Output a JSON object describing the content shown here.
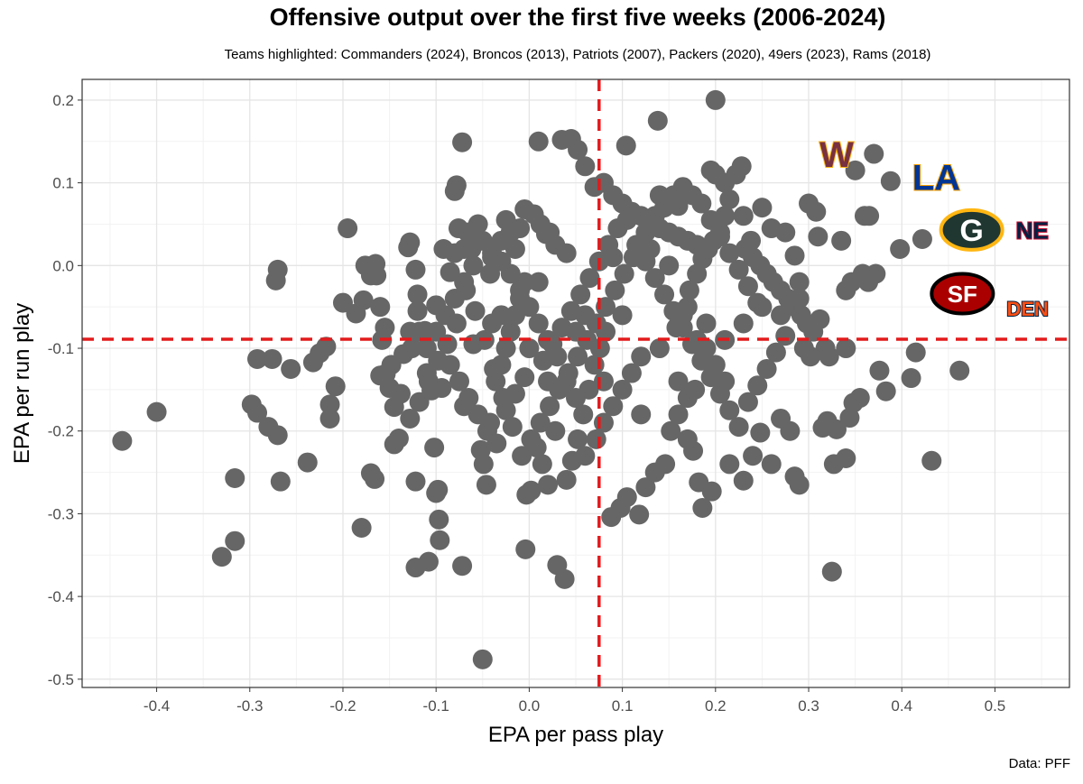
{
  "title": "Offensive output over the first five weeks (2006-2024)",
  "subtitle": "Teams highlighted: Commanders (2024), Broncos (2013), Patriots (2007), Packers (2020), 49ers (2023), Rams (2018)",
  "caption": "Data: PFF",
  "colors": {
    "points": "#666666",
    "reference_lines": "#e31a1c",
    "grid_major": "#e5e5e5",
    "grid_minor": "#f2f2f2",
    "panel_border": "#333333"
  },
  "chart_data": {
    "type": "scatter",
    "title": "Offensive output over the first five weeks (2006-2024)",
    "xlabel": "EPA per pass play",
    "ylabel": "EPA per run play",
    "xlim": [
      -0.48,
      0.58
    ],
    "ylim": [
      -0.51,
      0.225
    ],
    "xticks": [
      -0.4,
      -0.3,
      -0.2,
      -0.1,
      0.0,
      0.1,
      0.2,
      0.3,
      0.4,
      0.5
    ],
    "xtick_labels": [
      "-0.4",
      "-0.3",
      "-0.2",
      "-0.1",
      "0.0",
      "0.1",
      "0.2",
      "0.3",
      "0.4",
      "0.5"
    ],
    "yticks": [
      0.2,
      0.1,
      0.0,
      -0.1,
      -0.2,
      -0.3,
      -0.4,
      -0.5
    ],
    "ytick_labels": [
      "0.2",
      "0.1",
      "0.0",
      "-0.1",
      "-0.2",
      "-0.3",
      "-0.4",
      "-0.5"
    ],
    "grid": true,
    "reference_lines": {
      "vertical_x": 0.075,
      "horizontal_y": -0.089
    },
    "highlighted_teams": [
      {
        "team": "Commanders (2024)",
        "logo": "W",
        "x": 0.33,
        "y": 0.135
      },
      {
        "team": "Rams (2018)",
        "logo": "LA",
        "x": 0.437,
        "y": 0.107
      },
      {
        "team": "Packers (2020)",
        "logo": "G",
        "x": 0.475,
        "y": 0.043
      },
      {
        "team": "Patriots (2007)",
        "logo": "NE",
        "x": 0.54,
        "y": 0.043
      },
      {
        "team": "49ers (2023)",
        "logo": "SF",
        "x": 0.465,
        "y": -0.034
      },
      {
        "team": "Broncos (2013)",
        "logo": "DEN",
        "x": 0.535,
        "y": -0.052
      }
    ],
    "points": [
      [
        -0.437,
        -0.212
      ],
      [
        -0.4,
        -0.177
      ],
      [
        -0.33,
        -0.352
      ],
      [
        -0.316,
        -0.333
      ],
      [
        -0.316,
        -0.257
      ],
      [
        -0.298,
        -0.168
      ],
      [
        -0.292,
        -0.178
      ],
      [
        -0.292,
        -0.113
      ],
      [
        -0.28,
        -0.195
      ],
      [
        -0.276,
        -0.113
      ],
      [
        -0.27,
        -0.205
      ],
      [
        -0.267,
        -0.261
      ],
      [
        -0.27,
        -0.005
      ],
      [
        -0.272,
        -0.018
      ],
      [
        -0.256,
        -0.125
      ],
      [
        -0.238,
        -0.238
      ],
      [
        -0.232,
        -0.117
      ],
      [
        -0.225,
        -0.106
      ],
      [
        -0.218,
        -0.098
      ],
      [
        -0.214,
        -0.185
      ],
      [
        -0.214,
        -0.168
      ],
      [
        -0.208,
        -0.146
      ],
      [
        -0.2,
        -0.045
      ],
      [
        -0.195,
        0.045
      ],
      [
        -0.186,
        -0.058
      ],
      [
        -0.176,
        0.0
      ],
      [
        -0.178,
        -0.042
      ],
      [
        -0.17,
        -0.012
      ],
      [
        -0.16,
        -0.05
      ],
      [
        -0.155,
        -0.075
      ],
      [
        -0.164,
        -0.012
      ],
      [
        -0.165,
        0.002
      ],
      [
        -0.18,
        -0.317
      ],
      [
        -0.17,
        -0.251
      ],
      [
        -0.166,
        -0.258
      ],
      [
        -0.16,
        -0.133
      ],
      [
        -0.154,
        -0.131
      ],
      [
        -0.15,
        -0.148
      ],
      [
        -0.145,
        -0.171
      ],
      [
        -0.145,
        -0.216
      ],
      [
        -0.14,
        -0.209
      ],
      [
        -0.135,
        -0.107
      ],
      [
        -0.126,
        -0.1
      ],
      [
        -0.128,
        -0.08
      ],
      [
        -0.13,
        0.022
      ],
      [
        -0.128,
        0.028
      ],
      [
        -0.122,
        -0.005
      ],
      [
        -0.12,
        -0.035
      ],
      [
        -0.122,
        -0.261
      ],
      [
        -0.122,
        -0.365
      ],
      [
        -0.108,
        -0.358
      ],
      [
        -0.112,
        -0.079
      ],
      [
        -0.118,
        -0.08
      ],
      [
        -0.11,
        -0.13
      ],
      [
        -0.105,
        -0.151
      ],
      [
        -0.102,
        -0.22
      ],
      [
        -0.1,
        -0.275
      ],
      [
        -0.098,
        -0.271
      ],
      [
        -0.097,
        -0.307
      ],
      [
        -0.096,
        -0.332
      ],
      [
        -0.094,
        -0.148
      ],
      [
        -0.1,
        -0.048
      ],
      [
        -0.092,
        0.02
      ],
      [
        -0.085,
        -0.008
      ],
      [
        -0.08,
        0.015
      ],
      [
        -0.076,
        0.045
      ],
      [
        -0.072,
        0.149
      ],
      [
        -0.08,
        0.09
      ],
      [
        -0.078,
        0.097
      ],
      [
        -0.066,
        0.04
      ],
      [
        -0.07,
        0.02
      ],
      [
        -0.062,
        0.02
      ],
      [
        -0.055,
        0.05
      ],
      [
        -0.05,
        0.03
      ],
      [
        -0.04,
        0.015
      ],
      [
        -0.042,
        -0.01
      ],
      [
        -0.03,
        0.03
      ],
      [
        -0.025,
        0.055
      ],
      [
        -0.02,
        0.04
      ],
      [
        -0.015,
        0.02
      ],
      [
        -0.01,
        0.045
      ],
      [
        -0.005,
        0.068
      ],
      [
        0.005,
        0.062
      ],
      [
        0.012,
        0.05
      ],
      [
        0.018,
        0.038
      ],
      [
        0.022,
        0.04
      ],
      [
        0.028,
        0.025
      ],
      [
        0.04,
        0.015
      ],
      [
        -0.072,
        -0.363
      ],
      [
        -0.05,
        -0.476
      ],
      [
        -0.046,
        -0.265
      ],
      [
        -0.052,
        -0.223
      ],
      [
        -0.049,
        -0.24
      ],
      [
        -0.042,
        -0.19
      ],
      [
        -0.036,
        -0.14
      ],
      [
        -0.03,
        -0.12
      ],
      [
        -0.025,
        -0.1
      ],
      [
        -0.02,
        -0.08
      ],
      [
        -0.015,
        -0.06
      ],
      [
        -0.01,
        -0.04
      ],
      [
        -0.005,
        -0.02
      ],
      [
        -0.003,
        -0.277
      ],
      [
        0.002,
        -0.272
      ],
      [
        -0.004,
        -0.343
      ],
      [
        0.008,
        -0.22
      ],
      [
        0.014,
        -0.24
      ],
      [
        0.02,
        -0.265
      ],
      [
        0.028,
        -0.2
      ],
      [
        0.03,
        -0.362
      ],
      [
        0.038,
        -0.379
      ],
      [
        0.04,
        -0.259
      ],
      [
        0.046,
        -0.236
      ],
      [
        0.052,
        -0.21
      ],
      [
        0.058,
        -0.18
      ],
      [
        0.064,
        -0.15
      ],
      [
        0.07,
        -0.12
      ],
      [
        0.076,
        -0.1
      ],
      [
        0.082,
        -0.08
      ],
      [
        0.088,
        -0.304
      ],
      [
        0.098,
        -0.293
      ],
      [
        0.105,
        -0.28
      ],
      [
        0.118,
        -0.301
      ],
      [
        0.125,
        -0.268
      ],
      [
        0.135,
        -0.25
      ],
      [
        0.146,
        -0.24
      ],
      [
        0.152,
        -0.2
      ],
      [
        0.16,
        -0.18
      ],
      [
        0.17,
        -0.16
      ],
      [
        0.178,
        -0.15
      ],
      [
        0.186,
        -0.293
      ],
      [
        0.196,
        -0.273
      ],
      [
        0.182,
        -0.262
      ],
      [
        0.176,
        -0.224
      ],
      [
        0.17,
        -0.21
      ],
      [
        0.158,
        -0.075
      ],
      [
        0.165,
        -0.06
      ],
      [
        0.172,
        -0.03
      ],
      [
        0.18,
        -0.01
      ],
      [
        0.186,
        0.008
      ],
      [
        0.192,
        0.02
      ],
      [
        0.198,
        0.03
      ],
      [
        0.205,
        0.04
      ],
      [
        0.21,
        0.06
      ],
      [
        0.215,
        0.08
      ],
      [
        0.222,
        0.11
      ],
      [
        0.228,
        0.12
      ],
      [
        0.2,
        0.2
      ],
      [
        0.138,
        0.175
      ],
      [
        0.104,
        0.145
      ],
      [
        0.035,
        0.152
      ],
      [
        0.045,
        0.153
      ],
      [
        0.052,
        0.14
      ],
      [
        0.01,
        0.15
      ],
      [
        0.06,
        0.12
      ],
      [
        0.08,
        0.1
      ],
      [
        0.07,
        0.095
      ],
      [
        0.09,
        0.085
      ],
      [
        0.1,
        0.075
      ],
      [
        0.11,
        0.065
      ],
      [
        0.12,
        0.06
      ],
      [
        0.13,
        0.05
      ],
      [
        0.14,
        0.045
      ],
      [
        0.15,
        0.04
      ],
      [
        0.16,
        0.035
      ],
      [
        0.17,
        0.03
      ],
      [
        0.18,
        0.025
      ],
      [
        0.19,
        0.02
      ],
      [
        0.232,
        0.02
      ],
      [
        0.24,
        0.01
      ],
      [
        0.248,
        0.0
      ],
      [
        0.255,
        -0.01
      ],
      [
        0.262,
        -0.02
      ],
      [
        0.27,
        -0.03
      ],
      [
        0.278,
        -0.04
      ],
      [
        0.285,
        -0.05
      ],
      [
        0.292,
        -0.06
      ],
      [
        0.298,
        -0.07
      ],
      [
        0.305,
        -0.08
      ],
      [
        0.312,
        -0.065
      ],
      [
        0.318,
        -0.1
      ],
      [
        0.32,
        -0.188
      ],
      [
        0.315,
        -0.196
      ],
      [
        0.325,
        -0.37
      ],
      [
        0.34,
        -0.233
      ],
      [
        0.344,
        -0.184
      ],
      [
        0.348,
        -0.166
      ],
      [
        0.355,
        -0.16
      ],
      [
        0.36,
        0.06
      ],
      [
        0.365,
        0.06
      ],
      [
        0.37,
        0.135
      ],
      [
        0.35,
        0.115
      ],
      [
        0.388,
        0.102
      ],
      [
        0.398,
        0.02
      ],
      [
        0.383,
        -0.152
      ],
      [
        0.376,
        -0.127
      ],
      [
        0.415,
        -0.105
      ],
      [
        0.41,
        -0.136
      ],
      [
        0.432,
        -0.236
      ],
      [
        0.462,
        -0.127
      ],
      [
        0.422,
        0.032
      ],
      [
        0.3,
        0.075
      ],
      [
        0.308,
        0.065
      ],
      [
        0.31,
        0.035
      ],
      [
        0.285,
        0.012
      ],
      [
        0.29,
        -0.02
      ],
      [
        0.28,
        -0.2
      ],
      [
        0.285,
        -0.255
      ],
      [
        0.29,
        -0.265
      ],
      [
        0.27,
        -0.185
      ],
      [
        0.26,
        -0.24
      ],
      [
        0.248,
        -0.202
      ],
      [
        0.24,
        -0.23
      ],
      [
        0.23,
        -0.26
      ],
      [
        0.215,
        -0.24
      ],
      [
        0.21,
        -0.14
      ],
      [
        0.2,
        -0.12
      ],
      [
        0.19,
        -0.1
      ],
      [
        0.18,
        -0.09
      ],
      [
        0.12,
        -0.11
      ],
      [
        0.11,
        -0.13
      ],
      [
        0.1,
        -0.15
      ],
      [
        0.09,
        -0.17
      ],
      [
        0.08,
        -0.19
      ],
      [
        0.072,
        -0.21
      ],
      [
        0.06,
        -0.23
      ],
      [
        0.05,
        -0.16
      ],
      [
        0.04,
        -0.14
      ],
      [
        0.03,
        -0.11
      ],
      [
        0.02,
        -0.09
      ],
      [
        0.01,
        -0.07
      ],
      [
        0.0,
        -0.05
      ],
      [
        -0.01,
        -0.03
      ],
      [
        -0.02,
        -0.01
      ],
      [
        -0.03,
        0.005
      ],
      [
        -0.04,
        0.01
      ],
      [
        -0.06,
        0.0
      ],
      [
        -0.07,
        -0.02
      ],
      [
        -0.08,
        -0.04
      ],
      [
        -0.09,
        -0.06
      ],
      [
        -0.1,
        -0.08
      ],
      [
        -0.11,
        -0.1
      ],
      [
        -0.085,
        -0.12
      ],
      [
        -0.075,
        -0.14
      ],
      [
        -0.065,
        -0.16
      ],
      [
        -0.055,
        -0.18
      ],
      [
        -0.045,
        -0.2
      ],
      [
        -0.035,
        -0.215
      ],
      [
        -0.025,
        -0.175
      ],
      [
        -0.015,
        -0.155
      ],
      [
        -0.005,
        -0.135
      ],
      [
        0.015,
        -0.115
      ],
      [
        0.025,
        -0.095
      ],
      [
        0.035,
        -0.075
      ],
      [
        0.045,
        -0.055
      ],
      [
        0.055,
        -0.035
      ],
      [
        0.065,
        -0.015
      ],
      [
        0.075,
        0.005
      ],
      [
        0.085,
        0.025
      ],
      [
        0.095,
        0.045
      ],
      [
        0.105,
        0.055
      ],
      [
        0.115,
        0.025
      ],
      [
        0.125,
        0.005
      ],
      [
        0.135,
        -0.015
      ],
      [
        0.145,
        -0.035
      ],
      [
        0.155,
        -0.055
      ],
      [
        0.165,
        -0.075
      ],
      [
        0.175,
        -0.095
      ],
      [
        0.185,
        -0.115
      ],
      [
        0.195,
        -0.135
      ],
      [
        0.205,
        -0.155
      ],
      [
        0.215,
        -0.175
      ],
      [
        0.225,
        -0.195
      ],
      [
        0.235,
        -0.165
      ],
      [
        0.245,
        -0.145
      ],
      [
        0.255,
        -0.125
      ],
      [
        0.265,
        -0.105
      ],
      [
        0.275,
        -0.085
      ],
      [
        0.245,
        -0.045
      ],
      [
        0.235,
        -0.025
      ],
      [
        0.225,
        -0.005
      ],
      [
        0.215,
        0.015
      ],
      [
        0.205,
        0.035
      ],
      [
        0.195,
        0.055
      ],
      [
        0.185,
        0.075
      ],
      [
        0.175,
        0.085
      ],
      [
        0.165,
        0.095
      ],
      [
        0.155,
        0.085
      ],
      [
        0.145,
        0.07
      ],
      [
        0.135,
        0.06
      ],
      [
        0.125,
        0.04
      ],
      [
        0.112,
        0.01
      ],
      [
        0.102,
        -0.01
      ],
      [
        0.092,
        -0.03
      ],
      [
        0.082,
        -0.05
      ],
      [
        0.072,
        -0.07
      ],
      [
        0.062,
        -0.09
      ],
      [
        0.052,
        -0.11
      ],
      [
        0.042,
        -0.13
      ],
      [
        0.032,
        -0.15
      ],
      [
        0.022,
        -0.17
      ],
      [
        0.012,
        -0.19
      ],
      [
        0.002,
        -0.21
      ],
      [
        -0.008,
        -0.23
      ],
      [
        -0.018,
        -0.195
      ],
      [
        -0.028,
        -0.16
      ],
      [
        -0.038,
        -0.125
      ],
      [
        -0.048,
        -0.09
      ],
      [
        -0.058,
        -0.055
      ],
      [
        -0.068,
        -0.03
      ],
      [
        -0.078,
        -0.07
      ],
      [
        -0.088,
        -0.095
      ],
      [
        -0.098,
        -0.115
      ],
      [
        -0.108,
        -0.14
      ],
      [
        -0.118,
        -0.165
      ],
      [
        -0.128,
        -0.185
      ],
      [
        -0.138,
        -0.155
      ],
      [
        -0.148,
        -0.12
      ],
      [
        -0.158,
        -0.09
      ],
      [
        -0.12,
        -0.055
      ],
      [
        -0.06,
        -0.095
      ],
      [
        -0.04,
        -0.07
      ],
      [
        0.0,
        -0.1
      ],
      [
        0.02,
        -0.14
      ],
      [
        0.06,
        -0.06
      ],
      [
        0.1,
        -0.06
      ],
      [
        0.14,
        -0.1
      ],
      [
        0.16,
        -0.14
      ],
      [
        0.12,
        -0.18
      ],
      [
        0.08,
        -0.14
      ],
      [
        0.05,
        -0.08
      ],
      [
        -0.03,
        -0.06
      ],
      [
        -0.07,
        -0.17
      ],
      [
        0.01,
        -0.02
      ],
      [
        0.09,
        0.01
      ],
      [
        0.13,
        0.02
      ],
      [
        0.15,
        0.0
      ],
      [
        0.17,
        -0.05
      ],
      [
        0.19,
        -0.07
      ],
      [
        0.21,
        -0.09
      ],
      [
        0.23,
        -0.07
      ],
      [
        0.25,
        -0.05
      ],
      [
        0.27,
        -0.06
      ],
      [
        0.29,
        -0.04
      ],
      [
        0.23,
        0.06
      ],
      [
        0.25,
        0.07
      ],
      [
        0.26,
        0.045
      ],
      [
        0.275,
        0.04
      ],
      [
        0.238,
        0.03
      ],
      [
        0.2,
        0.11
      ],
      [
        0.21,
        0.1
      ],
      [
        0.195,
        0.115
      ],
      [
        0.16,
        0.072
      ],
      [
        0.14,
        0.085
      ],
      [
        0.335,
        0.03
      ],
      [
        0.34,
        -0.03
      ],
      [
        0.346,
        -0.02
      ],
      [
        0.358,
        -0.01
      ],
      [
        0.364,
        -0.02
      ],
      [
        0.372,
        -0.01
      ],
      [
        0.34,
        -0.1
      ],
      [
        0.327,
        -0.24
      ],
      [
        0.33,
        -0.198
      ],
      [
        0.322,
        -0.11
      ],
      [
        0.302,
        -0.11
      ],
      [
        0.295,
        -0.1
      ]
    ]
  }
}
